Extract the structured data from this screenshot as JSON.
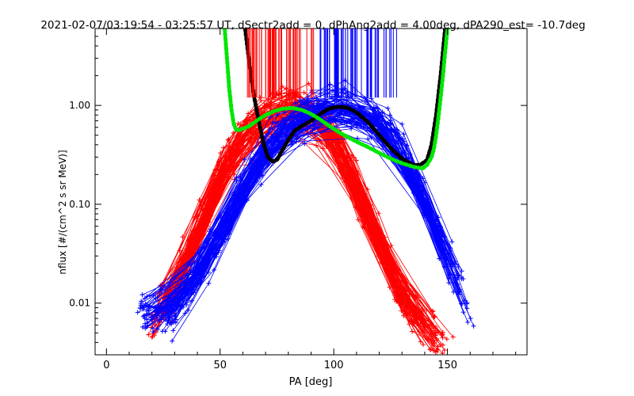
{
  "chart_data": {
    "type": "line",
    "title": "2021-02-07/03:19:54 - 03:25:57 UT, dSectr2add = 0, dPhAng2add = 4.00deg, dPA290_est= -10.7deg",
    "xlabel": "PA [deg]",
    "ylabel": "nflux [#/(cm^2 s sr MeV)]",
    "xlim": [
      -5,
      185
    ],
    "ylim": [
      0.003,
      6.0
    ],
    "yscale": "log",
    "x_ticks": [
      0,
      50,
      100,
      150
    ],
    "x_tick_labels": [
      "0",
      "50",
      "100",
      "150"
    ],
    "y_ticks": [
      0.01,
      0.1,
      1.0
    ],
    "y_tick_labels": [
      "0.01",
      "0.10",
      "1.00"
    ],
    "grid": false,
    "colors": {
      "red_series": "#ff0000",
      "blue_series": "#0000ff",
      "black_fit": "#000000",
      "green_fit": "#00e600"
    },
    "series": [
      {
        "color": "#000000",
        "style": "thick-dotted",
        "x": [
          61,
          63,
          65,
          67,
          69,
          71,
          73,
          75,
          77,
          80,
          83,
          86,
          90,
          94,
          98,
          102,
          106,
          110,
          115,
          120,
          125,
          130,
          135,
          138,
          141,
          143,
          145,
          147,
          149
        ],
        "y": [
          6.0,
          2.5,
          1.2,
          0.7,
          0.42,
          0.3,
          0.27,
          0.28,
          0.34,
          0.45,
          0.56,
          0.62,
          0.7,
          0.82,
          0.93,
          0.97,
          0.95,
          0.85,
          0.68,
          0.5,
          0.37,
          0.29,
          0.25,
          0.25,
          0.28,
          0.4,
          0.8,
          2.0,
          6.0
        ]
      },
      {
        "color": "#00e600",
        "style": "thick-dotted",
        "x": [
          52,
          53,
          54,
          55,
          56,
          57,
          58,
          60,
          63,
          66,
          70,
          74,
          78,
          82,
          86,
          90,
          94,
          98,
          102,
          106,
          110,
          115,
          120,
          125,
          130,
          135,
          139,
          141,
          143,
          144,
          145,
          146,
          147,
          148,
          149,
          150
        ],
        "y": [
          6.0,
          3.0,
          1.5,
          0.9,
          0.65,
          0.57,
          0.56,
          0.58,
          0.62,
          0.7,
          0.8,
          0.88,
          0.93,
          0.94,
          0.9,
          0.82,
          0.72,
          0.62,
          0.54,
          0.48,
          0.43,
          0.38,
          0.33,
          0.29,
          0.26,
          0.24,
          0.23,
          0.25,
          0.3,
          0.36,
          0.5,
          0.75,
          1.2,
          2.0,
          3.5,
          6.0
        ]
      }
    ],
    "scatter_clouds": [
      {
        "color": "#ff0000",
        "description_points": [
          [
            20,
            0.006
          ],
          [
            30,
            0.015
          ],
          [
            40,
            0.05
          ],
          [
            50,
            0.2
          ],
          [
            60,
            0.5
          ],
          [
            70,
            0.8
          ],
          [
            80,
            0.95
          ],
          [
            90,
            0.9
          ],
          [
            100,
            0.5
          ],
          [
            110,
            0.15
          ],
          [
            120,
            0.04
          ],
          [
            130,
            0.012
          ],
          [
            140,
            0.006
          ],
          [
            150,
            0.004
          ]
        ]
      },
      {
        "color": "#0000ff",
        "description_points": [
          [
            15,
            0.008
          ],
          [
            30,
            0.008
          ],
          [
            40,
            0.02
          ],
          [
            50,
            0.05
          ],
          [
            60,
            0.15
          ],
          [
            70,
            0.35
          ],
          [
            80,
            0.6
          ],
          [
            90,
            0.85
          ],
          [
            100,
            0.95
          ],
          [
            110,
            0.9
          ],
          [
            120,
            0.7
          ],
          [
            130,
            0.35
          ],
          [
            140,
            0.1
          ],
          [
            150,
            0.03
          ],
          [
            160,
            0.008
          ]
        ]
      }
    ],
    "vertical_ticks": {
      "top": 6.0,
      "bottom": 1.2,
      "red_range": [
        62,
        93
      ],
      "blue_range": [
        93,
        128
      ]
    }
  }
}
